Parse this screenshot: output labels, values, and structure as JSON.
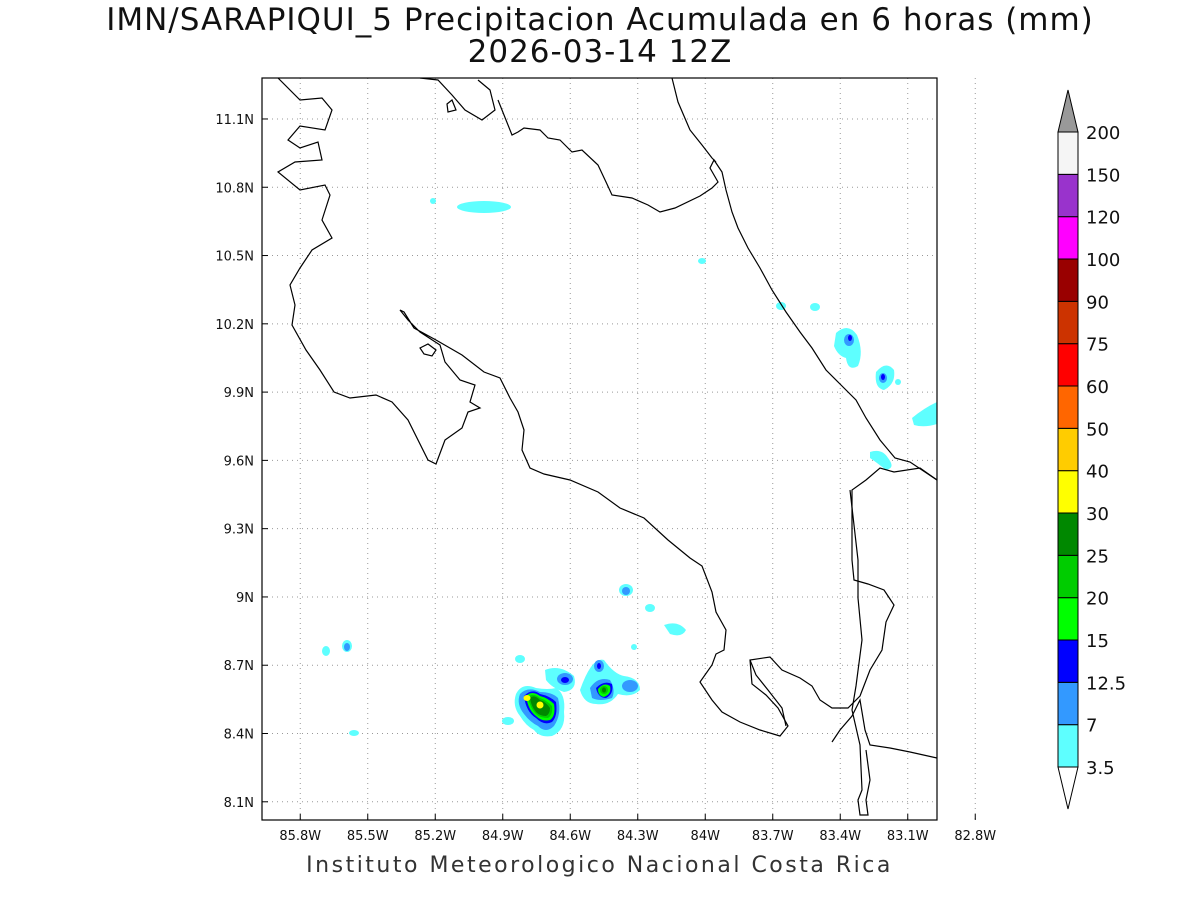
{
  "title": {
    "line1": "IMN/SARAPIQUI_5 Precipitacion Acumulada en 6 horas (mm)",
    "line2": "2026-03-14 12Z"
  },
  "footer": "Instituto Meteorologico Nacional Costa Rica",
  "map": {
    "lon_range": [
      -85.97,
      -82.97
    ],
    "lat_range": [
      8.02,
      11.28
    ],
    "lon_ticks": [
      "85.8W",
      "85.5W",
      "85.2W",
      "84.9W",
      "84.6W",
      "84.3W",
      "84W",
      "83.7W",
      "83.4W",
      "83.1W",
      "82.8W"
    ],
    "lat_ticks": [
      "8.1N",
      "8.4N",
      "8.7N",
      "9N",
      "9.3N",
      "9.6N",
      "9.9N",
      "10.2N",
      "10.5N",
      "10.8N",
      "11.1N"
    ],
    "grid": true
  },
  "colorbar": {
    "labels": [
      "3.5",
      "7",
      "12.5",
      "15",
      "20",
      "25",
      "30",
      "40",
      "50",
      "60",
      "75",
      "90",
      "100",
      "120",
      "150",
      "200"
    ],
    "colors": [
      "#5effff",
      "#3399ff",
      "#0000ff",
      "#00ff00",
      "#00cc00",
      "#008800",
      "#ffff00",
      "#ffcc00",
      "#ff6600",
      "#ff0000",
      "#cc3300",
      "#990000",
      "#ff00ff",
      "#9933cc",
      "#f5f5f5"
    ],
    "extend": "both",
    "top_arrow_color": "#999999",
    "bottom_arrow_color": "#ffffff"
  }
}
